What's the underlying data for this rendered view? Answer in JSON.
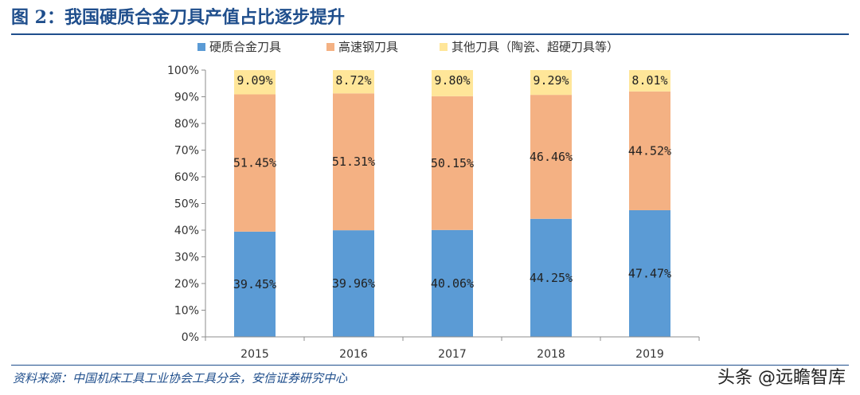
{
  "header": {
    "title": "图 2：我国硬质合金刀具产值占比逐步提升"
  },
  "footer": {
    "source": "资料来源：中国机床工具工业协会工具分会，安信证券研究中心",
    "watermark": "头条 @远瞻智库"
  },
  "chart_data": {
    "type": "bar",
    "stacked": true,
    "categories": [
      "2015",
      "2016",
      "2017",
      "2018",
      "2019"
    ],
    "series": [
      {
        "name": "硬质合金刀具",
        "color": "#5b9bd5",
        "values": [
          39.45,
          39.96,
          40.06,
          44.25,
          47.47
        ],
        "labels": [
          "39.45%",
          "39.96%",
          "40.06%",
          "44.25%",
          "47.47%"
        ]
      },
      {
        "name": "高速钢刀具",
        "color": "#f4b183",
        "values": [
          51.45,
          51.31,
          50.15,
          46.46,
          44.52
        ],
        "labels": [
          "51.45%",
          "51.31%",
          "50.15%",
          "46.46%",
          "44.52%"
        ]
      },
      {
        "name": "其他刀具（陶瓷、超硬刀具等）",
        "color": "#ffe699",
        "values": [
          9.09,
          8.72,
          9.8,
          9.29,
          8.01
        ],
        "labels": [
          "9.09%",
          "8.72%",
          "9.80%",
          "9.29%",
          "8.01%"
        ]
      }
    ],
    "yticks": [
      "0%",
      "10%",
      "20%",
      "30%",
      "40%",
      "50%",
      "60%",
      "70%",
      "80%",
      "90%",
      "100%"
    ],
    "ylim": [
      0,
      100
    ],
    "legend": "top",
    "grid": false
  }
}
